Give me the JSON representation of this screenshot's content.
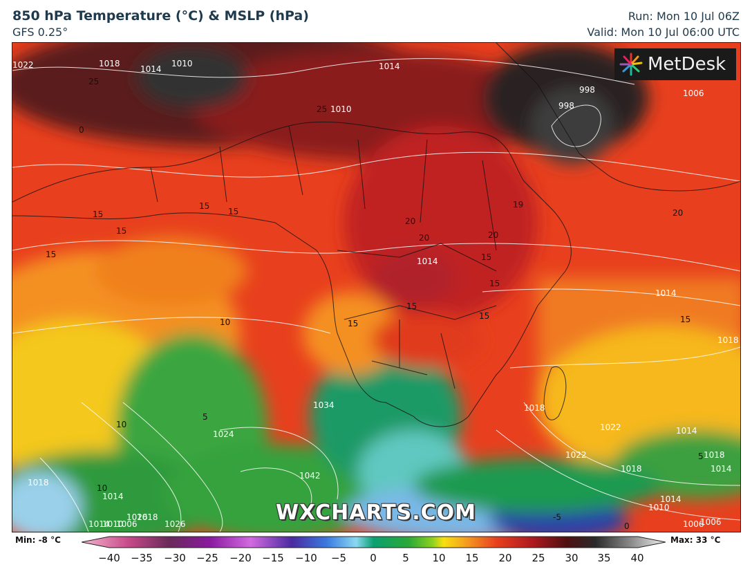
{
  "header": {
    "title": "850 hPa Temperature (°C) & MSLP (hPa)",
    "model": "GFS 0.25°",
    "run": "Run: Mon 10 Jul 06Z",
    "valid": "Valid: Mon 10 Jul 06:00 UTC"
  },
  "logo": {
    "text": "MetDesk"
  },
  "watermark": "WXCHARTS.COM",
  "colorbar": {
    "min_label": "Min: -8 °C",
    "max_label": "Max: 33 °C",
    "ticks": [
      "−40",
      "−35",
      "−30",
      "−25",
      "−20",
      "−15",
      "−10",
      "−5",
      "0",
      "5",
      "10",
      "15",
      "20",
      "25",
      "30",
      "35",
      "40"
    ]
  },
  "isobar_labels": [
    "1022",
    "1018",
    "1014",
    "1010",
    "1014",
    "1010",
    "1014",
    "998",
    "998",
    "1006",
    "1014",
    "1018",
    "1018",
    "1022",
    "1014",
    "1010",
    "1006",
    "1026",
    "1024",
    "1042",
    "1034",
    "1018",
    "1014",
    "1014",
    "1018",
    "1022",
    "1026",
    "1018",
    "1014",
    "1010",
    "1006",
    "1018",
    "1014",
    "1006"
  ],
  "temperature_labels": [
    "25",
    "25",
    "0",
    "15",
    "15",
    "15",
    "15",
    "15",
    "10",
    "10",
    "10",
    "5",
    "20",
    "20",
    "20",
    "15",
    "15",
    "15",
    "15",
    "15",
    "19",
    "20",
    "15",
    "-5",
    "0",
    "5"
  ]
}
